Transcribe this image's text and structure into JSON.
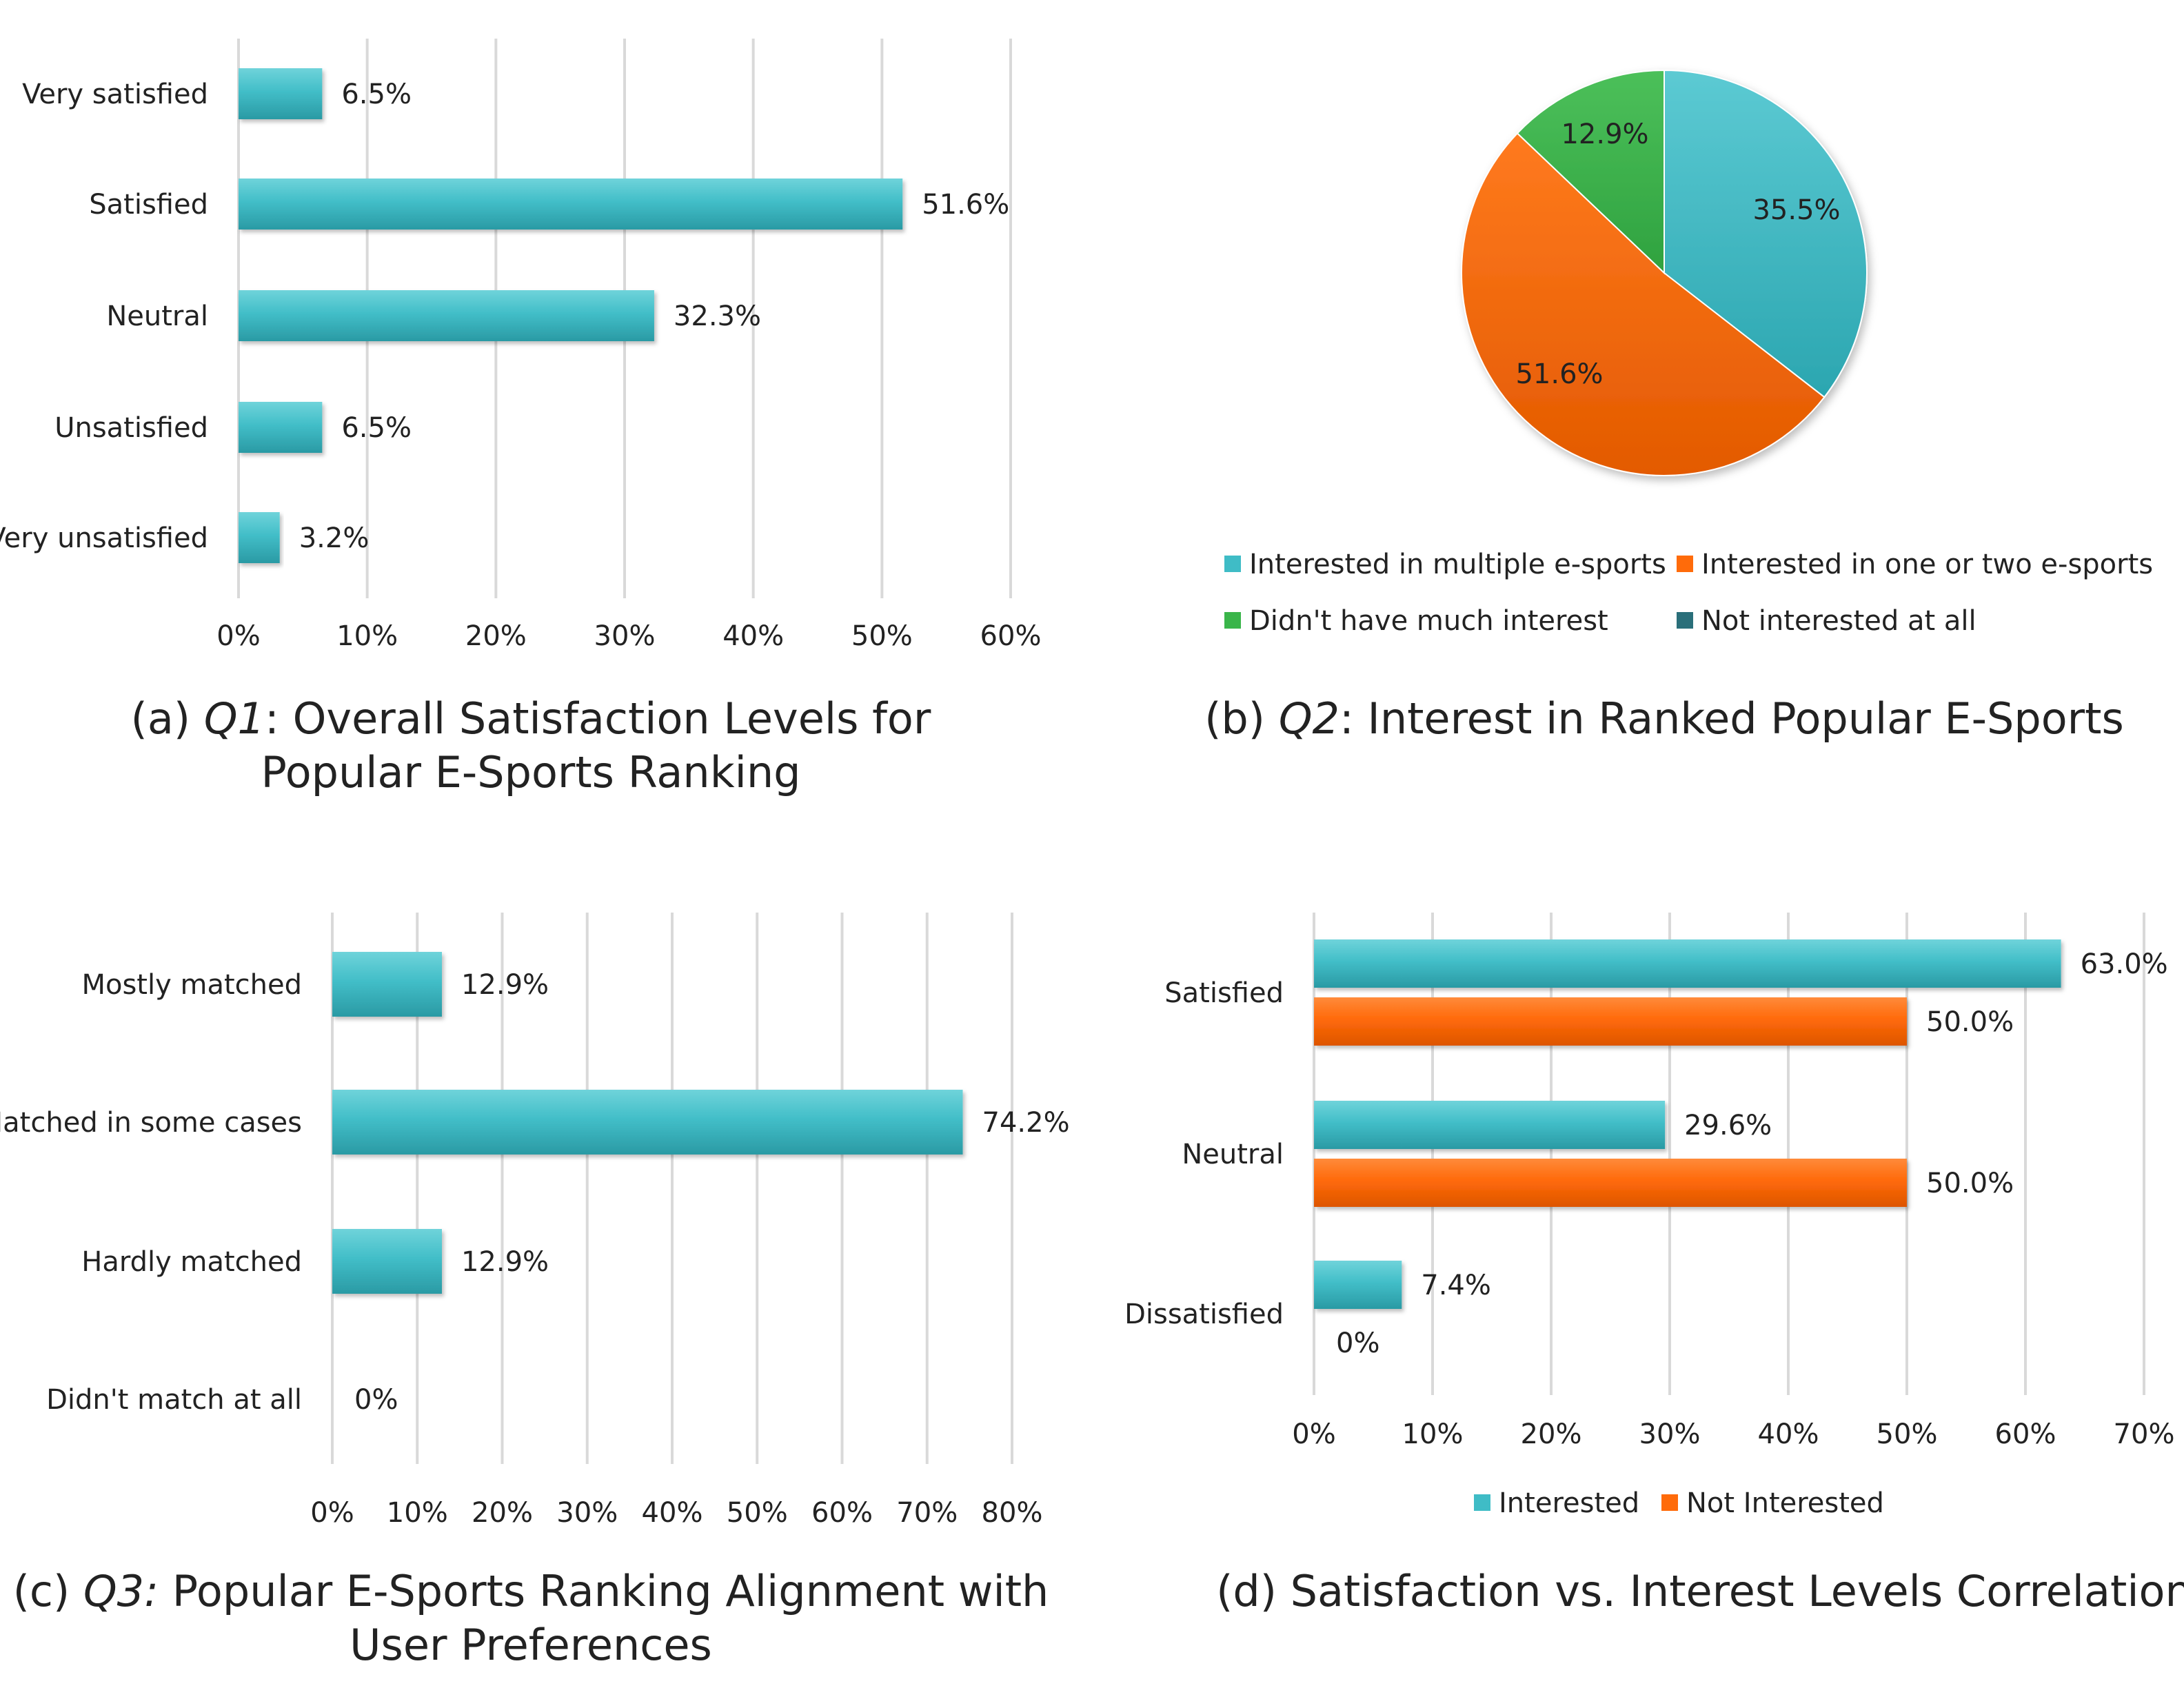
{
  "colors": {
    "teal": "#3fbcc6",
    "teal_dark": "#2c99a3",
    "orange": "#ff6b0a",
    "orange_dark": "#d85300",
    "green": "#3ab54a",
    "dark_teal": "#2a6f7a"
  },
  "chart_data": [
    {
      "id": "a",
      "type": "bar",
      "orientation": "horizontal",
      "caption": {
        "prefix": "(a) ",
        "q": "Q1",
        "line1": ": Overall Satisfaction Levels for",
        "line2": "Popular E-Sports Ranking"
      },
      "categories": [
        "Very satisfied",
        "Satisfied",
        "Neutral",
        "Unsatisfied",
        "Very unsatisfied"
      ],
      "values": [
        6.5,
        51.6,
        32.3,
        6.5,
        3.2
      ],
      "labels": [
        "6.5%",
        "51.6%",
        "32.3%",
        "6.5%",
        "3.2%"
      ],
      "xlim": [
        0,
        60
      ],
      "xticks": [
        "0%",
        "10%",
        "20%",
        "30%",
        "40%",
        "50%",
        "60%"
      ]
    },
    {
      "id": "b",
      "type": "pie",
      "caption": {
        "prefix": "(b) ",
        "q": "Q2",
        "line1": ": Interest in Ranked Popular E-Sports"
      },
      "slices": [
        {
          "name": "Interested in multiple e-sports",
          "value": 35.5,
          "label": "35.5%"
        },
        {
          "name": "Interested in one or two e-sports",
          "value": 51.6,
          "label": "51.6%"
        },
        {
          "name": "Didn't have much interest",
          "value": 12.9,
          "label": "12.9%"
        },
        {
          "name": "Not interested at all",
          "value": 0,
          "label": ""
        }
      ]
    },
    {
      "id": "c",
      "type": "bar",
      "orientation": "horizontal",
      "caption": {
        "prefix": "(c) ",
        "q": "Q3:",
        "line1": " Popular E-Sports Ranking Alignment with",
        "line2": "User Preferences"
      },
      "categories": [
        "Mostly matched",
        "Matched in some cases",
        "Hardly matched",
        "Didn't match at all"
      ],
      "values": [
        12.9,
        74.2,
        12.9,
        0
      ],
      "labels": [
        "12.9%",
        "74.2%",
        "12.9%",
        "0%"
      ],
      "xlim": [
        0,
        80
      ],
      "xticks": [
        "0%",
        "10%",
        "20%",
        "30%",
        "40%",
        "50%",
        "60%",
        "70%",
        "80%"
      ]
    },
    {
      "id": "d",
      "type": "bar",
      "orientation": "horizontal",
      "caption": {
        "prefix": "(d) ",
        "line1": "Satisfaction vs. Interest Levels Correlation"
      },
      "categories": [
        "Satisfied",
        "Neutral",
        "Dissatisfied"
      ],
      "series": [
        {
          "name": "Interested",
          "values": [
            63.0,
            29.6,
            7.4
          ],
          "labels": [
            "63.0%",
            "29.6%",
            "7.4%"
          ]
        },
        {
          "name": "Not Interested",
          "values": [
            50.0,
            50.0,
            0
          ],
          "labels": [
            "50.0%",
            "50.0%",
            "0%"
          ]
        }
      ],
      "xlim": [
        0,
        70
      ],
      "xticks": [
        "0%",
        "10%",
        "20%",
        "30%",
        "40%",
        "50%",
        "60%",
        "70%"
      ]
    }
  ]
}
